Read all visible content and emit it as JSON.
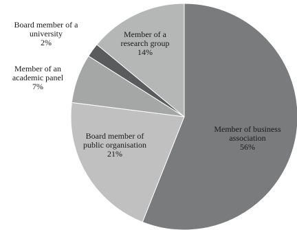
{
  "chart_data": {
    "type": "pie",
    "title": "",
    "slices": [
      {
        "name": "Member of business association",
        "label_lines": [
          "Member of business",
          "association",
          "56%"
        ],
        "value": 56,
        "color": "#7a7b7c"
      },
      {
        "name": "Board member of public organisation",
        "label_lines": [
          "Board member of",
          "public organisation",
          "21%"
        ],
        "value": 21,
        "color": "#c0c0c0"
      },
      {
        "name": "Member of an academic panel",
        "label_lines": [
          "Member of an",
          "academic panel",
          "7%"
        ],
        "value": 7,
        "color": "#a5a6a6"
      },
      {
        "name": "Board member of a university",
        "label_lines": [
          "Board member of a",
          "university",
          "2%"
        ],
        "value": 2,
        "color": "#5a5b5c"
      },
      {
        "name": "Member of a research group",
        "label_lines": [
          "Member of a",
          "research group",
          "14%"
        ],
        "value": 14,
        "color": "#b5b6b6"
      }
    ]
  }
}
